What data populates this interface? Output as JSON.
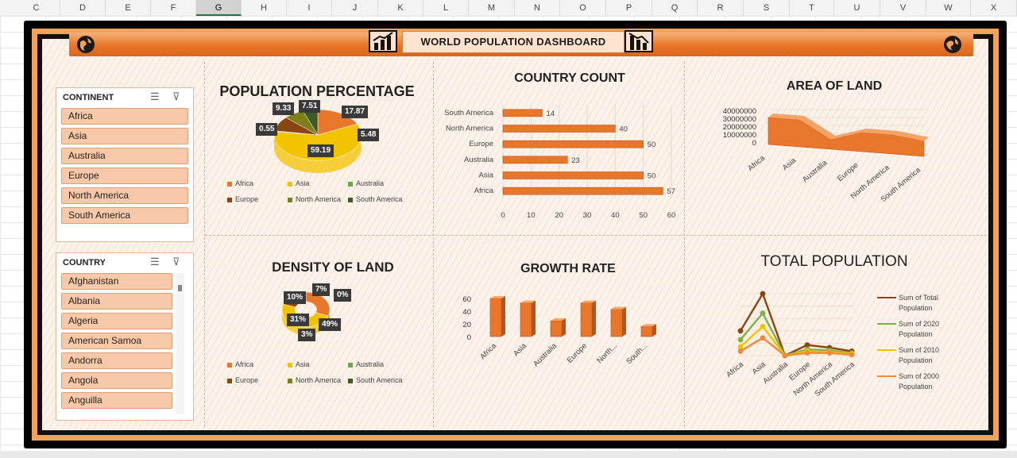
{
  "columns": [
    "C",
    "D",
    "E",
    "F",
    "G",
    "H",
    "I",
    "J",
    "K",
    "L",
    "M",
    "N",
    "O",
    "P",
    "Q",
    "R",
    "S",
    "T",
    "U",
    "V",
    "W",
    "X"
  ],
  "dashboard": {
    "title": "WORLD POPULATION DASHBOARD"
  },
  "continent_slicer": {
    "title": "CONTINENT",
    "items": [
      "Africa",
      "Asia",
      "Australia",
      "Europe",
      "North America",
      "South America"
    ]
  },
  "country_slicer": {
    "title": "COUNTRY",
    "items": [
      "Afghanistan",
      "Albania",
      "Algeria",
      "American Samoa",
      "Andorra",
      "Angola",
      "Anguilla"
    ]
  },
  "colors": {
    "africa": "#e8762b",
    "asia": "#f4c300",
    "australia": "#6aa84f",
    "europe": "#8b4513",
    "north_america": "#7f7f1a",
    "south_america": "#3d5a2a"
  },
  "legend_labels": [
    "Africa",
    "Asia",
    "Australia",
    "Europe",
    "North America",
    "South America"
  ],
  "chart_data": [
    {
      "type": "pie",
      "title": "POPULATION PERCENTAGE",
      "categories": [
        "Africa",
        "Asia",
        "Australia",
        "Europe",
        "North America",
        "South America"
      ],
      "values": [
        17.87,
        59.19,
        0.55,
        9.33,
        7.51,
        5.48
      ],
      "legend": "bottom"
    },
    {
      "type": "bar",
      "title": "COUNTRY COUNT",
      "categories": [
        "Africa",
        "Asia",
        "Australia",
        "Europe",
        "North America",
        "South America"
      ],
      "values": [
        57,
        50,
        23,
        50,
        40,
        14
      ],
      "xlim": [
        0,
        60
      ],
      "ticks": [
        "0",
        "10",
        "20",
        "30",
        "40",
        "50",
        "60"
      ]
    },
    {
      "type": "area",
      "title": "AREA OF LAND",
      "categories": [
        "Africa",
        "Asia",
        "Australia",
        "Europe",
        "North America",
        "South America"
      ],
      "values": [
        30000000,
        30000000,
        8000000,
        20000000,
        20000000,
        15000000
      ],
      "ylim": [
        0,
        40000000
      ],
      "ticks": [
        "0",
        "10000000",
        "20000000",
        "30000000",
        "40000000"
      ]
    },
    {
      "type": "pie",
      "title": "DENSITY OF LAND",
      "categories": [
        "Africa",
        "Asia",
        "Australia",
        "Europe",
        "North America",
        "South America"
      ],
      "values": [
        31,
        49,
        0,
        10,
        7,
        3
      ],
      "labels": [
        "31%",
        "49%",
        "0%",
        "10%",
        "7%",
        "3%"
      ],
      "legend": "bottom"
    },
    {
      "type": "bar",
      "title": "GROWTH RATE",
      "categories": [
        "Africa",
        "Asia",
        "Australia",
        "Europe",
        "North...",
        "South..."
      ],
      "values": [
        60,
        53,
        25,
        53,
        43,
        16
      ],
      "ylim": [
        0,
        60
      ],
      "ticks": [
        "0",
        "20",
        "40",
        "60"
      ]
    },
    {
      "type": "line",
      "title": "TOTAL POPULATION",
      "categories": [
        "Africa",
        "Asia",
        "Australia",
        "Europe",
        "North America",
        "South America"
      ],
      "series": [
        {
          "name": "Sum of Total Population",
          "values": [
            28,
            70,
            0,
            12,
            9,
            5
          ]
        },
        {
          "name": "Sum of 2020 Population",
          "values": [
            18,
            48,
            0,
            7,
            6,
            3
          ]
        },
        {
          "name": "Sum of 2010 Population",
          "values": [
            10,
            33,
            0,
            5,
            4,
            2
          ]
        },
        {
          "name": "Sum of 2000 Population",
          "values": [
            5,
            20,
            0,
            3,
            3,
            1
          ]
        }
      ]
    }
  ]
}
